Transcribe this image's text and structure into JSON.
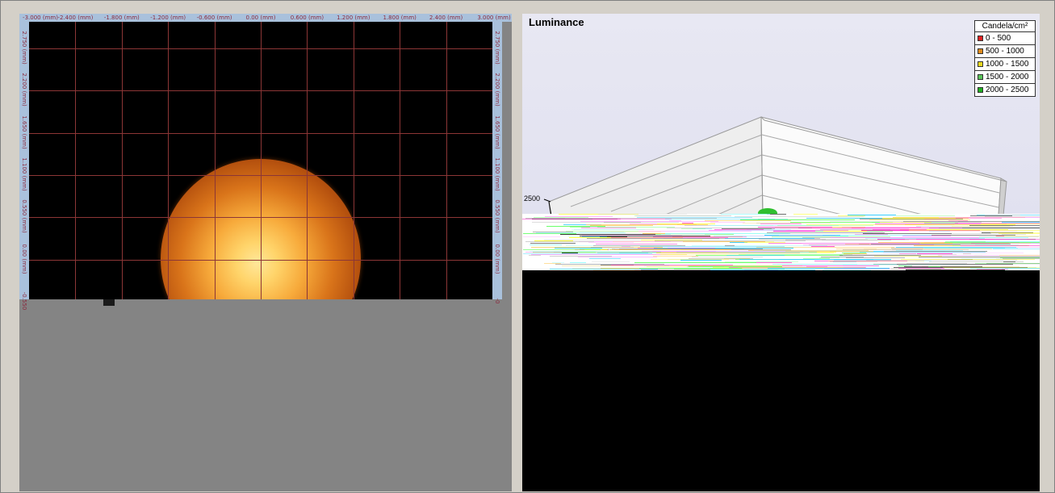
{
  "left_view": {
    "x_ticks": [
      "-3.000 (mm)",
      "-2.400 (mm)",
      "-1.800 (mm)",
      "-1.200 (mm)",
      "-0.600 (mm)",
      "0.00 (mm)",
      "0.600 (mm)",
      "1.200 (mm)",
      "1.800 (mm)",
      "2.400 (mm)",
      "3.000 (mm)"
    ],
    "y_ticks": [
      "2.750 (mm)",
      "2.200 (mm)",
      "1.650 (mm)",
      "1.100 (mm)",
      "0.550 (mm)",
      "0.00 (mm)",
      "-0.550"
    ],
    "y_ticks_right": [
      "2.750 (mm)",
      "2.200 (mm)",
      "1.650 (mm)",
      "1.100 (mm)",
      "0.550 (mm)",
      "0.00 (mm)",
      "-0"
    ]
  },
  "right_view": {
    "title": "Luminance",
    "z_tick": "2500",
    "legend": {
      "title": "Candela/cm²",
      "items": [
        {
          "label": "0 - 500",
          "color": "#e02020"
        },
        {
          "label": "500 - 1000",
          "color": "#e08a1a"
        },
        {
          "label": "1000 - 1500",
          "color": "#e8d820"
        },
        {
          "label": "1500 - 2000",
          "color": "#58c458"
        },
        {
          "label": "2000 - 2500",
          "color": "#20b020"
        }
      ]
    },
    "colors": {
      "background": "#e1e1f0",
      "wall": "#f2f2f2",
      "surface_peak": "#2fbf2f"
    }
  }
}
